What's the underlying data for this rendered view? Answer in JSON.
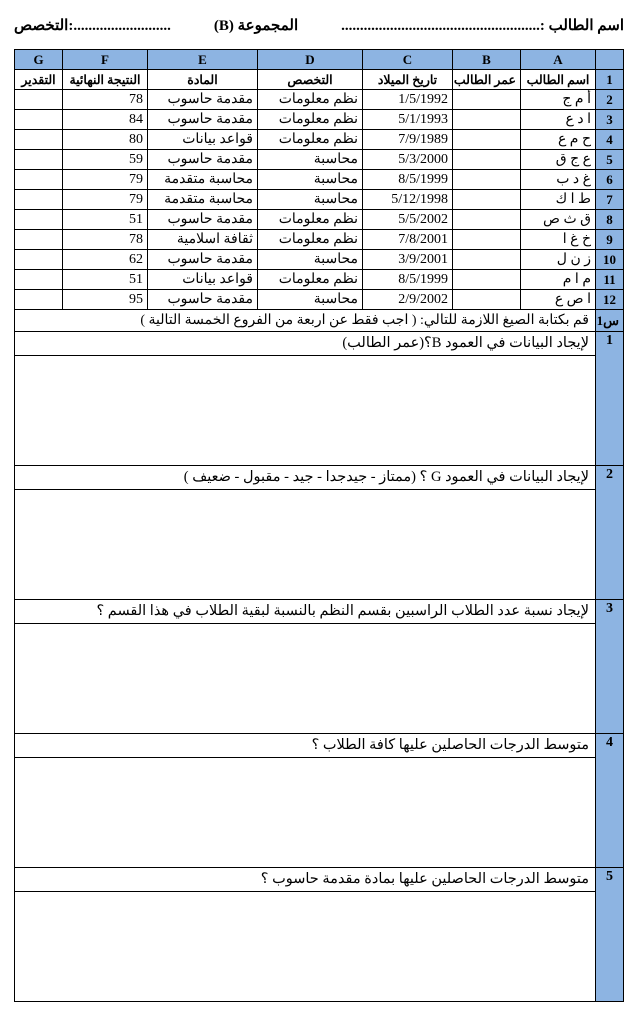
{
  "header": {
    "name_label": "اسم الطالب :.....................................................",
    "group_label": "المجموعة (B)",
    "spec_label": "التخصص:.........................."
  },
  "colheads": {
    "A": "A",
    "B": "B",
    "C": "C",
    "D": "D",
    "E": "E",
    "F": "F",
    "G": "G"
  },
  "subheads": {
    "A": "اسم الطالب",
    "B": "عمر الطالب",
    "C": "تاريخ الميلاد",
    "D": "التخصص",
    "E": "المادة",
    "F": "النتيجة النهائية",
    "G": "التقدير"
  },
  "rows": [
    {
      "n": "1"
    },
    {
      "n": "2",
      "A": "أ م ج",
      "B": "",
      "C": "1/5/1992",
      "D": "نظم معلومات",
      "E": "مقدمة حاسوب",
      "F": "78",
      "G": ""
    },
    {
      "n": "3",
      "A": "ا د ع",
      "B": "",
      "C": "5/1/1993",
      "D": "نظم معلومات",
      "E": "مقدمة حاسوب",
      "F": "84",
      "G": ""
    },
    {
      "n": "4",
      "A": "ح م ع",
      "B": "",
      "C": "7/9/1989",
      "D": "نظم معلومات",
      "E": "قواعد بيانات",
      "F": "80",
      "G": ""
    },
    {
      "n": "5",
      "A": "ع ج ق",
      "B": "",
      "C": "5/3/2000",
      "D": "محاسبة",
      "E": "مقدمة حاسوب",
      "F": "59",
      "G": ""
    },
    {
      "n": "6",
      "A": "غ د ب",
      "B": "",
      "C": "8/5/1999",
      "D": "محاسبة",
      "E": "محاسبة متقدمة",
      "F": "79",
      "G": ""
    },
    {
      "n": "7",
      "A": "ط ا ك",
      "B": "",
      "C": "5/12/1998",
      "D": "محاسبة",
      "E": "محاسبة متقدمة",
      "F": "79",
      "G": ""
    },
    {
      "n": "8",
      "A": "ق ث ص",
      "B": "",
      "C": "5/5/2002",
      "D": "نظم معلومات",
      "E": "مقدمة حاسوب",
      "F": "51",
      "G": ""
    },
    {
      "n": "9",
      "A": "خ غ ا",
      "B": "",
      "C": "7/8/2001",
      "D": "نظم معلومات",
      "E": "ثقافة اسلامية",
      "F": "78",
      "G": ""
    },
    {
      "n": "10",
      "A": "ز ن ل",
      "B": "",
      "C": "3/9/2001",
      "D": "محاسبة",
      "E": "مقدمة حاسوب",
      "F": "62",
      "G": ""
    },
    {
      "n": "11",
      "A": "م ا م",
      "B": "",
      "C": "8/5/1999",
      "D": "نظم معلومات",
      "E": "قواعد بيانات",
      "F": "51",
      "G": ""
    },
    {
      "n": "12",
      "A": "ا ص ع",
      "B": "",
      "C": "2/9/2002",
      "D": "محاسبة",
      "E": "مقدمة حاسوب",
      "F": "95",
      "G": ""
    }
  ],
  "instruction": {
    "label": "س1",
    "text": "قم بكتابة الصيغ اللازمة للتالي:   ( اجب فقط عن اربعة من الفروع الخمسة التالية )"
  },
  "questions": [
    {
      "n": "1",
      "text": "لإيجاد البيانات في العمود B؟(عمر الطالب)"
    },
    {
      "n": "2",
      "text": "لإيجاد البيانات في العمود G ؟ (ممتاز - جيدجدا - جيد - مقبول - ضعيف )"
    },
    {
      "n": "3",
      "text": "لإيجاد نسبة عدد الطلاب الراسبين بقسم النظم بالنسبة لبقية الطلاب في هذا القسم ؟"
    },
    {
      "n": "4",
      "text": "متوسط الدرجات الحاصلين عليها كافة الطلاب ؟"
    },
    {
      "n": "5",
      "text": "متوسط الدرجات الحاصلين عليها بمادة مقدمة حاسوب ؟"
    }
  ]
}
